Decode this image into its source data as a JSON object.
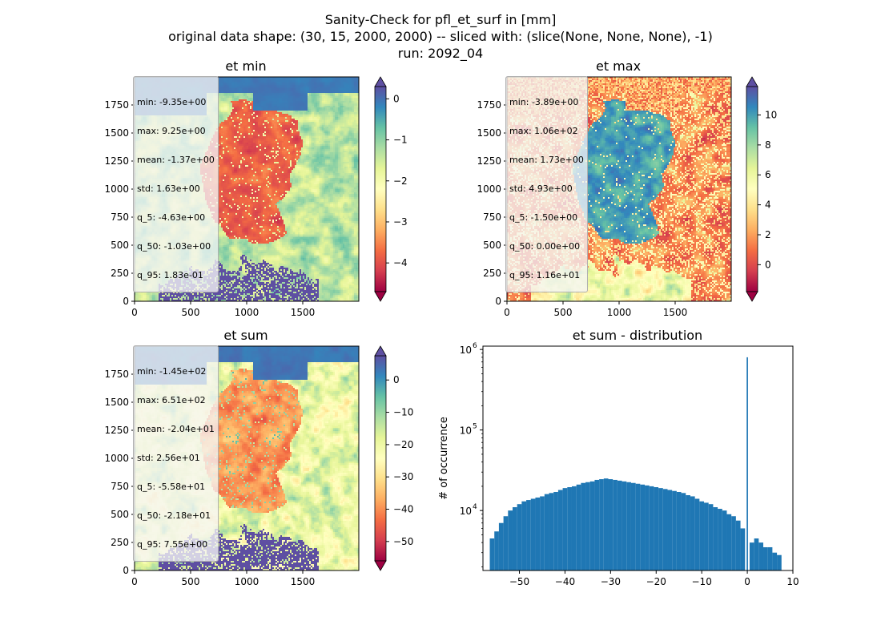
{
  "figure": {
    "suptitle": [
      "Sanity-Check for pfl_et_surf in [mm]",
      "original data shape: (30, 15, 2000, 2000) -- sliced with: (slice(None, None, None), -1)",
      "run: 2092_04"
    ]
  },
  "chart_data": [
    {
      "type": "heatmap",
      "title": "et min",
      "colormap": "Spectral",
      "xlim": [
        0,
        2000
      ],
      "ylim": [
        0,
        2000
      ],
      "xticks": [
        "0",
        "500",
        "1000",
        "1500"
      ],
      "yticks": [
        "0",
        "250",
        "500",
        "750",
        "1000",
        "1250",
        "1500",
        "1750"
      ],
      "colorbar": {
        "range": [
          -4.7,
          0.3
        ],
        "ticks": [
          0,
          -1,
          -2,
          -3,
          -4
        ],
        "tick_labels": [
          "0",
          "−1",
          "−2",
          "−3",
          "−4"
        ]
      },
      "stats": [
        "min: -9.35e+00",
        "max: 9.25e+00",
        "mean: -1.37e+00",
        "std: 1.63e+00",
        "q_5: -4.63e+00",
        "q_50: -1.03e+00",
        "q_95: 1.83e-01"
      ]
    },
    {
      "type": "heatmap",
      "title": "et max",
      "colormap": "Spectral",
      "xlim": [
        0,
        2000
      ],
      "ylim": [
        0,
        2000
      ],
      "xticks": [
        "0",
        "500",
        "1000",
        "1500"
      ],
      "yticks": [
        "0",
        "250",
        "500",
        "750",
        "1000",
        "1250",
        "1500",
        "1750"
      ],
      "colorbar": {
        "range": [
          -1.8,
          11.9
        ],
        "ticks": [
          0,
          2,
          4,
          6,
          8,
          10
        ],
        "tick_labels": [
          "0",
          "2",
          "4",
          "6",
          "8",
          "10"
        ]
      },
      "stats": [
        "min: -3.89e+00",
        "max: 1.06e+02",
        "mean: 1.73e+00",
        "std: 4.93e+00",
        "q_5: -1.50e+00",
        "q_50: 0.00e+00",
        "q_95: 1.16e+01"
      ]
    },
    {
      "type": "heatmap",
      "title": "et sum",
      "colormap": "Spectral",
      "xlim": [
        0,
        2000
      ],
      "ylim": [
        0,
        2000
      ],
      "xticks": [
        "0",
        "500",
        "1000",
        "1500"
      ],
      "yticks": [
        "0",
        "250",
        "500",
        "750",
        "1000",
        "1250",
        "1500",
        "1750"
      ],
      "colorbar": {
        "range": [
          -56,
          7.5
        ],
        "ticks": [
          0,
          -10,
          -20,
          -30,
          -40,
          -50
        ],
        "tick_labels": [
          "0",
          "−10",
          "−20",
          "−30",
          "−40",
          "−50"
        ]
      },
      "stats": [
        "min: -1.45e+02",
        "max: 6.51e+02",
        "mean: -2.04e+01",
        "std: 2.56e+01",
        "q_5: -5.58e+01",
        "q_50: -2.18e+01",
        "q_95: 7.55e+00"
      ]
    },
    {
      "type": "bar",
      "title": "et sum - distribution",
      "ylabel": "# of occurrence",
      "xlabel": "",
      "yscale": "log",
      "xlim": [
        -58,
        10
      ],
      "ylim": [
        1800,
        1100000
      ],
      "xticks": [
        -50,
        -40,
        -30,
        -20,
        -10,
        0,
        10
      ],
      "xtick_labels": [
        "−50",
        "−40",
        "−30",
        "−20",
        "−10",
        "0",
        "10"
      ],
      "ytick_labels": [
        {
          "base": "10",
          "exp": "4",
          "value": 10000
        },
        {
          "base": "10",
          "exp": "5",
          "value": 100000
        },
        {
          "base": "10",
          "exp": "6",
          "value": 1000000
        }
      ],
      "color": "#1f77b4",
      "bins": [
        {
          "x": -56,
          "y": 4500
        },
        {
          "x": -55,
          "y": 5500
        },
        {
          "x": -54,
          "y": 7000
        },
        {
          "x": -53,
          "y": 8500
        },
        {
          "x": -52,
          "y": 10000
        },
        {
          "x": -51,
          "y": 11000
        },
        {
          "x": -50,
          "y": 12000
        },
        {
          "x": -49,
          "y": 13000
        },
        {
          "x": -48,
          "y": 13500
        },
        {
          "x": -47,
          "y": 14000
        },
        {
          "x": -46,
          "y": 14500
        },
        {
          "x": -45,
          "y": 15000
        },
        {
          "x": -44,
          "y": 16000
        },
        {
          "x": -43,
          "y": 16500
        },
        {
          "x": -42,
          "y": 17000
        },
        {
          "x": -41,
          "y": 18000
        },
        {
          "x": -40,
          "y": 19000
        },
        {
          "x": -39,
          "y": 19500
        },
        {
          "x": -38,
          "y": 20000
        },
        {
          "x": -37,
          "y": 21000
        },
        {
          "x": -36,
          "y": 22000
        },
        {
          "x": -35,
          "y": 22500
        },
        {
          "x": -34,
          "y": 23000
        },
        {
          "x": -33,
          "y": 24000
        },
        {
          "x": -32,
          "y": 24500
        },
        {
          "x": -31,
          "y": 25000
        },
        {
          "x": -30,
          "y": 24500
        },
        {
          "x": -29,
          "y": 24000
        },
        {
          "x": -28,
          "y": 23500
        },
        {
          "x": -27,
          "y": 23000
        },
        {
          "x": -26,
          "y": 22500
        },
        {
          "x": -25,
          "y": 22000
        },
        {
          "x": -24,
          "y": 21500
        },
        {
          "x": -23,
          "y": 21000
        },
        {
          "x": -22,
          "y": 20500
        },
        {
          "x": -21,
          "y": 20000
        },
        {
          "x": -20,
          "y": 19500
        },
        {
          "x": -19,
          "y": 19000
        },
        {
          "x": -18,
          "y": 18500
        },
        {
          "x": -17,
          "y": 18000
        },
        {
          "x": -16,
          "y": 17500
        },
        {
          "x": -15,
          "y": 17000
        },
        {
          "x": -14,
          "y": 16500
        },
        {
          "x": -13,
          "y": 15500
        },
        {
          "x": -12,
          "y": 15000
        },
        {
          "x": -11,
          "y": 14000
        },
        {
          "x": -10,
          "y": 13000
        },
        {
          "x": -9,
          "y": 12500
        },
        {
          "x": -8,
          "y": 12000
        },
        {
          "x": -7,
          "y": 11000
        },
        {
          "x": -6,
          "y": 10500
        },
        {
          "x": -5,
          "y": 10000
        },
        {
          "x": -4,
          "y": 9000
        },
        {
          "x": -3,
          "y": 8500
        },
        {
          "x": -2,
          "y": 7500
        },
        {
          "x": -1,
          "y": 6000
        },
        {
          "x": 0,
          "y": 800000
        },
        {
          "x": 1,
          "y": 4000
        },
        {
          "x": 2,
          "y": 4500
        },
        {
          "x": 3,
          "y": 4000
        },
        {
          "x": 4,
          "y": 3500
        },
        {
          "x": 5,
          "y": 3500
        },
        {
          "x": 6,
          "y": 3000
        },
        {
          "x": 7,
          "y": 2800
        }
      ]
    }
  ]
}
